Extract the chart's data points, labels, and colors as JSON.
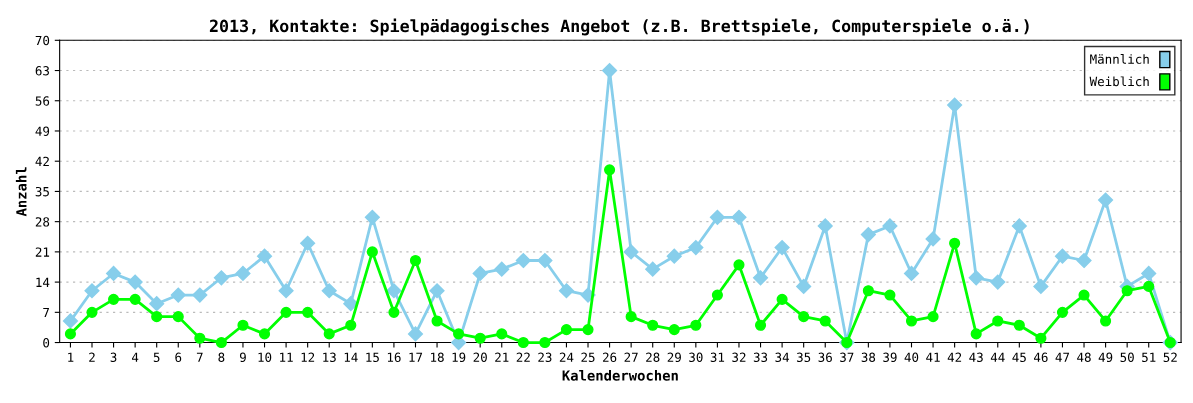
{
  "chart_data": {
    "type": "line",
    "title": "2013, Kontakte: Spielpädagogisches Angebot (z.B. Brettspiele, Computerspiele o.ä.)",
    "xlabel": "Kalenderwochen",
    "ylabel": "Anzahl",
    "categories": [
      "1",
      "2",
      "3",
      "4",
      "5",
      "6",
      "7",
      "8",
      "9",
      "10",
      "11",
      "12",
      "13",
      "14",
      "15",
      "16",
      "17",
      "18",
      "19",
      "20",
      "21",
      "22",
      "23",
      "24",
      "25",
      "26",
      "27",
      "28",
      "29",
      "30",
      "31",
      "32",
      "33",
      "34",
      "35",
      "36",
      "37",
      "38",
      "39",
      "40",
      "41",
      "42",
      "43",
      "44",
      "45",
      "46",
      "47",
      "48",
      "49",
      "50",
      "51",
      "52"
    ],
    "series": [
      {
        "name": "Männlich",
        "color": "#87ceeb",
        "marker": "diamond",
        "values": [
          5,
          12,
          16,
          14,
          9,
          11,
          11,
          15,
          16,
          20,
          12,
          23,
          12,
          9,
          29,
          12,
          2,
          12,
          0,
          16,
          17,
          19,
          19,
          12,
          11,
          63,
          21,
          17,
          20,
          22,
          29,
          29,
          15,
          22,
          13,
          27,
          0,
          25,
          27,
          16,
          24,
          55,
          15,
          14,
          27,
          13,
          20,
          19,
          33,
          13,
          16,
          0
        ]
      },
      {
        "name": "Weiblich",
        "color": "#00ff00",
        "marker": "circle",
        "values": [
          2,
          7,
          10,
          10,
          6,
          6,
          1,
          0,
          4,
          2,
          7,
          7,
          2,
          4,
          21,
          7,
          19,
          5,
          2,
          1,
          2,
          0,
          0,
          3,
          3,
          40,
          6,
          4,
          3,
          4,
          11,
          18,
          4,
          10,
          6,
          5,
          0,
          12,
          11,
          5,
          6,
          23,
          2,
          5,
          4,
          1,
          7,
          11,
          5,
          12,
          13,
          0
        ]
      }
    ],
    "ylim": [
      0,
      70
    ],
    "yticks": [
      0,
      7,
      14,
      21,
      28,
      35,
      42,
      49,
      56,
      63,
      70
    ],
    "grid": "y",
    "legend": "top right",
    "line_style": "solid"
  }
}
